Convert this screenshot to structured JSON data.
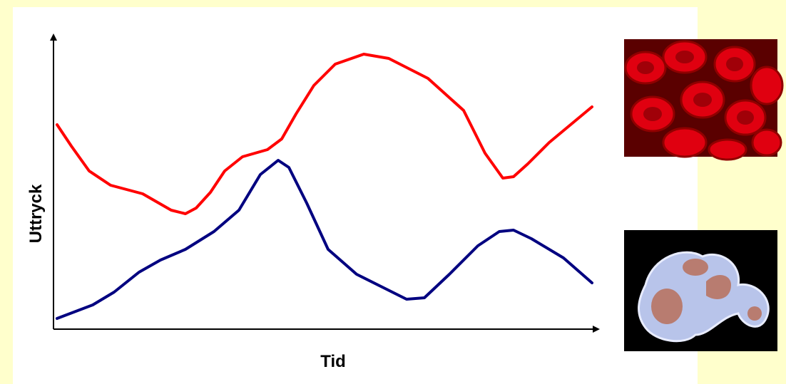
{
  "axes": {
    "y_label": "Uttryck",
    "x_label": "Tid"
  }
}
